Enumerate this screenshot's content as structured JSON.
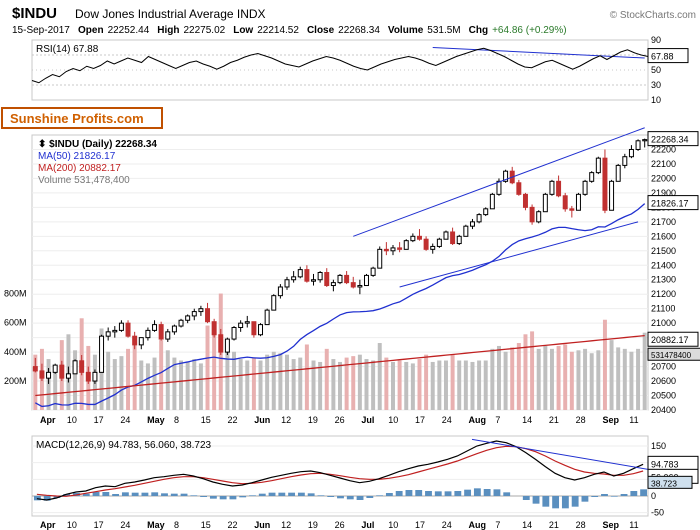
{
  "meta": {
    "symbol": "$INDU",
    "name": "Dow Jones Industrial Average INDX",
    "source_tag": "© StockCharts.com",
    "date": "15-Sep-2017",
    "open_l": "Open",
    "open": "22252.44",
    "high_l": "High",
    "high": "22275.02",
    "low_l": "Low",
    "low": "22214.52",
    "close_l": "Close",
    "close": "22268.34",
    "vol_l": "Volume",
    "vol": "531.5M",
    "chg_l": "Chg",
    "chg": "+64.86 (+0.29%)"
  },
  "watermark": "Sunshine Profits.com",
  "rsi": {
    "label": "RSI(14)",
    "value": "67.88",
    "ytop": 90,
    "ybot": 10,
    "mid": 50,
    "band_hi": 70,
    "band_lo": 30,
    "last_tag": "67.88",
    "color_line": "#000",
    "color_overlay": "#2030d0",
    "vals": [
      36,
      33,
      39,
      44,
      41,
      48,
      52,
      49,
      55,
      52,
      56,
      62,
      58,
      62,
      66,
      63,
      60,
      68,
      64,
      60,
      56,
      52,
      56,
      60,
      62,
      58,
      55,
      51,
      55,
      60,
      63,
      67,
      70,
      72,
      69,
      66,
      62,
      58,
      56,
      54,
      58,
      62,
      65,
      68,
      66,
      63,
      59,
      55,
      52,
      50,
      54,
      58,
      61,
      64,
      66,
      68,
      66,
      63,
      59,
      56,
      60,
      64,
      68,
      71,
      74,
      77,
      79,
      76,
      72,
      68,
      63,
      58,
      54,
      53,
      57,
      61,
      63,
      59,
      55,
      51,
      55,
      60,
      65,
      69,
      64,
      69,
      74,
      77,
      73,
      70,
      68
    ]
  },
  "price": {
    "title": "$INDU (Daily) 22268.34",
    "ma50_l": "MA(50) 21826.17",
    "ma200_l": "MA(200) 20882.17",
    "vol_l": "Volume 531,478,400",
    "ylo": 20400,
    "yhi": 22300,
    "yticks": [
      20400,
      20500,
      20600,
      20700,
      20800,
      20900,
      21000,
      21100,
      21200,
      21300,
      21400,
      21500,
      21600,
      21700,
      21800,
      21900,
      22000,
      22100,
      22200
    ],
    "price_tag": "22268.34",
    "ma50_tag": "21826.17",
    "ma200_tag": "20882.17",
    "vol_tag": "531478400",
    "vol_yticks": [
      200,
      400,
      600,
      800
    ],
    "candles": [
      [
        20700,
        20760,
        20660,
        20670,
        "r",
        380
      ],
      [
        20670,
        20720,
        20600,
        20620,
        "r",
        420
      ],
      [
        20620,
        20690,
        20580,
        20660,
        "g",
        350
      ],
      [
        20660,
        20720,
        20650,
        20710,
        "g",
        310
      ],
      [
        20710,
        20740,
        20600,
        20620,
        "r",
        480
      ],
      [
        20620,
        20700,
        20590,
        20650,
        "g",
        520
      ],
      [
        20650,
        20750,
        20650,
        20740,
        "g",
        410
      ],
      [
        20740,
        20780,
        20640,
        20660,
        "r",
        630
      ],
      [
        20660,
        20700,
        20580,
        20600,
        "r",
        440
      ],
      [
        20600,
        20680,
        20580,
        20660,
        "g",
        380
      ],
      [
        20660,
        20920,
        20660,
        20910,
        "g",
        560
      ],
      [
        20910,
        20970,
        20880,
        20940,
        "g",
        400
      ],
      [
        20940,
        20980,
        20900,
        20950,
        "g",
        350
      ],
      [
        20950,
        21020,
        20940,
        21000,
        "g",
        370
      ],
      [
        21000,
        21020,
        20900,
        20910,
        "r",
        420
      ],
      [
        20910,
        20940,
        20820,
        20850,
        "r",
        460
      ],
      [
        20850,
        20900,
        20820,
        20900,
        "g",
        340
      ],
      [
        20900,
        20970,
        20880,
        20950,
        "g",
        320
      ],
      [
        20950,
        21020,
        20940,
        20990,
        "g",
        360
      ],
      [
        20990,
        21010,
        20880,
        20890,
        "r",
        480
      ],
      [
        20890,
        20960,
        20870,
        20940,
        "g",
        410
      ],
      [
        20940,
        20990,
        20920,
        20980,
        "g",
        360
      ],
      [
        20980,
        21030,
        20970,
        21020,
        "g",
        340
      ],
      [
        21020,
        21060,
        21000,
        21050,
        "g",
        330
      ],
      [
        21050,
        21100,
        21020,
        21080,
        "g",
        350
      ],
      [
        21080,
        21120,
        21050,
        21100,
        "g",
        320
      ],
      [
        21100,
        21140,
        21000,
        21010,
        "r",
        580
      ],
      [
        21010,
        21030,
        20900,
        20920,
        "r",
        520
      ],
      [
        20920,
        20960,
        20780,
        20800,
        "r",
        800
      ],
      [
        20800,
        20900,
        20780,
        20890,
        "g",
        460
      ],
      [
        20890,
        20980,
        20880,
        20970,
        "g",
        400
      ],
      [
        20970,
        21020,
        20940,
        21000,
        "g",
        350
      ],
      [
        21000,
        21050,
        20970,
        21010,
        "g",
        340
      ],
      [
        21010,
        20990,
        20900,
        20920,
        "r",
        360
      ],
      [
        20920,
        21000,
        20910,
        20990,
        "g",
        340
      ],
      [
        20990,
        21100,
        20990,
        21090,
        "g",
        380
      ],
      [
        21090,
        21200,
        21090,
        21190,
        "g",
        400
      ],
      [
        21190,
        21270,
        21170,
        21250,
        "g",
        390
      ],
      [
        21250,
        21320,
        21230,
        21300,
        "g",
        380
      ],
      [
        21300,
        21360,
        21280,
        21320,
        "g",
        350
      ],
      [
        21320,
        21390,
        21310,
        21370,
        "g",
        360
      ],
      [
        21370,
        21400,
        21280,
        21290,
        "r",
        450
      ],
      [
        21290,
        21340,
        21260,
        21300,
        "g",
        340
      ],
      [
        21300,
        21360,
        21280,
        21350,
        "g",
        330
      ],
      [
        21350,
        21380,
        21250,
        21260,
        "r",
        420
      ],
      [
        21260,
        21300,
        21220,
        21280,
        "g",
        350
      ],
      [
        21280,
        21340,
        21270,
        21330,
        "g",
        330
      ],
      [
        21330,
        21360,
        21270,
        21280,
        "r",
        360
      ],
      [
        21280,
        21320,
        21240,
        21250,
        "r",
        370
      ],
      [
        21250,
        21300,
        21200,
        21260,
        "g",
        380
      ],
      [
        21260,
        21340,
        21260,
        21330,
        "g",
        350
      ],
      [
        21330,
        21390,
        21320,
        21380,
        "g",
        340
      ],
      [
        21380,
        21530,
        21380,
        21510,
        "g",
        460
      ],
      [
        21510,
        21560,
        21470,
        21500,
        "r",
        360
      ],
      [
        21500,
        21540,
        21470,
        21520,
        "g",
        330
      ],
      [
        21520,
        21560,
        21490,
        21510,
        "r",
        340
      ],
      [
        21510,
        21580,
        21510,
        21570,
        "g",
        330
      ],
      [
        21570,
        21620,
        21560,
        21600,
        "g",
        320
      ],
      [
        21600,
        21650,
        21570,
        21580,
        "r",
        350
      ],
      [
        21580,
        21600,
        21500,
        21510,
        "r",
        380
      ],
      [
        21510,
        21550,
        21480,
        21530,
        "g",
        330
      ],
      [
        21530,
        21590,
        21520,
        21580,
        "g",
        340
      ],
      [
        21580,
        21640,
        21580,
        21630,
        "g",
        340
      ],
      [
        21630,
        21660,
        21540,
        21550,
        "r",
        380
      ],
      [
        21550,
        21610,
        21540,
        21600,
        "g",
        340
      ],
      [
        21600,
        21680,
        21600,
        21670,
        "g",
        340
      ],
      [
        21670,
        21720,
        21650,
        21700,
        "g",
        330
      ],
      [
        21700,
        21760,
        21690,
        21750,
        "g",
        340
      ],
      [
        21750,
        21800,
        21740,
        21790,
        "g",
        340
      ],
      [
        21790,
        21900,
        21790,
        21890,
        "g",
        420
      ],
      [
        21890,
        22000,
        21880,
        21980,
        "g",
        440
      ],
      [
        21980,
        22060,
        21970,
        22050,
        "g",
        400
      ],
      [
        22050,
        22080,
        21960,
        21970,
        "r",
        430
      ],
      [
        21970,
        21990,
        21880,
        21890,
        "r",
        460
      ],
      [
        21890,
        21900,
        21780,
        21800,
        "r",
        520
      ],
      [
        21800,
        21820,
        21680,
        21700,
        "r",
        540
      ],
      [
        21700,
        21780,
        21690,
        21770,
        "g",
        420
      ],
      [
        21770,
        21900,
        21770,
        21890,
        "g",
        440
      ],
      [
        21890,
        21990,
        21880,
        21980,
        "g",
        420
      ],
      [
        21980,
        22020,
        21870,
        21880,
        "r",
        440
      ],
      [
        21880,
        21900,
        21770,
        21790,
        "r",
        450
      ],
      [
        21790,
        21810,
        21730,
        21780,
        "r",
        400
      ],
      [
        21780,
        21900,
        21780,
        21890,
        "g",
        410
      ],
      [
        21890,
        21990,
        21880,
        21980,
        "g",
        420
      ],
      [
        21980,
        22050,
        21970,
        22040,
        "g",
        390
      ],
      [
        22040,
        22150,
        22030,
        22140,
        "g",
        410
      ],
      [
        22140,
        22200,
        21760,
        21780,
        "r",
        620
      ],
      [
        21780,
        21990,
        21780,
        21980,
        "g",
        480
      ],
      [
        21980,
        22100,
        21980,
        22090,
        "g",
        430
      ],
      [
        22090,
        22170,
        22070,
        22150,
        "g",
        420
      ],
      [
        22150,
        22230,
        22140,
        22200,
        "g",
        400
      ],
      [
        22200,
        22270,
        22190,
        22260,
        "g",
        420
      ],
      [
        22260,
        22275,
        22214,
        22268,
        "g",
        531
      ]
    ],
    "ma50_color": "#2030d0",
    "ma200_color": "#c02020",
    "trendline_color": "#2030d0"
  },
  "xaxis": {
    "labels": [
      "Apr",
      "10",
      "17",
      "24",
      "May",
      "8",
      "15",
      "22",
      "Jun",
      "12",
      "19",
      "26",
      "Jul",
      "10",
      "17",
      "24",
      "Aug",
      "7",
      "14",
      "21",
      "28",
      "Sep",
      "11"
    ]
  },
  "macd": {
    "label": "MACD(12,26,9) 94.783, 56.060, 38.723",
    "ylo": -60,
    "yhi": 180,
    "yticks": [
      -50,
      0,
      50,
      100,
      150
    ],
    "line_color": "#000",
    "sig_color": "#c02020",
    "hist_color": "#5a8fbf",
    "last_line": "94.783",
    "last_sig": "56.060",
    "last_hist": "38.723",
    "line": [
      -8,
      -12,
      -6,
      5,
      12,
      15,
      25,
      30,
      28,
      38,
      42,
      48,
      55,
      58,
      62,
      65,
      60,
      52,
      42,
      35,
      30,
      33,
      40,
      48,
      56,
      62,
      68,
      73,
      75,
      70,
      62,
      54,
      46,
      40,
      44,
      52,
      62,
      73,
      82,
      90,
      95,
      102,
      110,
      120,
      135,
      150,
      158,
      165,
      160,
      148,
      130,
      110,
      88,
      68,
      55,
      48,
      55,
      65,
      72,
      60,
      68,
      82,
      95
    ],
    "sig": [
      5,
      2,
      0,
      -1,
      3,
      8,
      13,
      18,
      22,
      27,
      32,
      38,
      44,
      50,
      55,
      58,
      58,
      55,
      50,
      45,
      40,
      37,
      38,
      41,
      46,
      52,
      58,
      63,
      67,
      68,
      65,
      61,
      56,
      52,
      50,
      50,
      53,
      58,
      64,
      72,
      80,
      88,
      96,
      105,
      116,
      127,
      137,
      145,
      149,
      148,
      142,
      133,
      120,
      105,
      92,
      80,
      72,
      68,
      66,
      62,
      62,
      67,
      75
    ],
    "hist": [
      -13,
      -14,
      -6,
      6,
      9,
      7,
      12,
      12,
      6,
      11,
      10,
      10,
      11,
      8,
      7,
      7,
      2,
      -3,
      -8,
      -10,
      -10,
      -4,
      2,
      7,
      10,
      10,
      10,
      10,
      8,
      2,
      -3,
      -7,
      -10,
      -12,
      -6,
      2,
      9,
      15,
      18,
      18,
      15,
      14,
      14,
      15,
      19,
      23,
      21,
      20,
      11,
      0,
      -12,
      -23,
      -32,
      -37,
      -37,
      -32,
      -17,
      -3,
      6,
      -2,
      6,
      15,
      20
    ]
  },
  "colors": {
    "grid": "#c8c8c8",
    "text": "#000",
    "green": "#2a7a2a",
    "red": "#c03030",
    "vol_red": "#e8b0b0",
    "vol_gray": "#bfbfbf",
    "tag_bg": "#ffffff",
    "tag_border": "#000"
  }
}
